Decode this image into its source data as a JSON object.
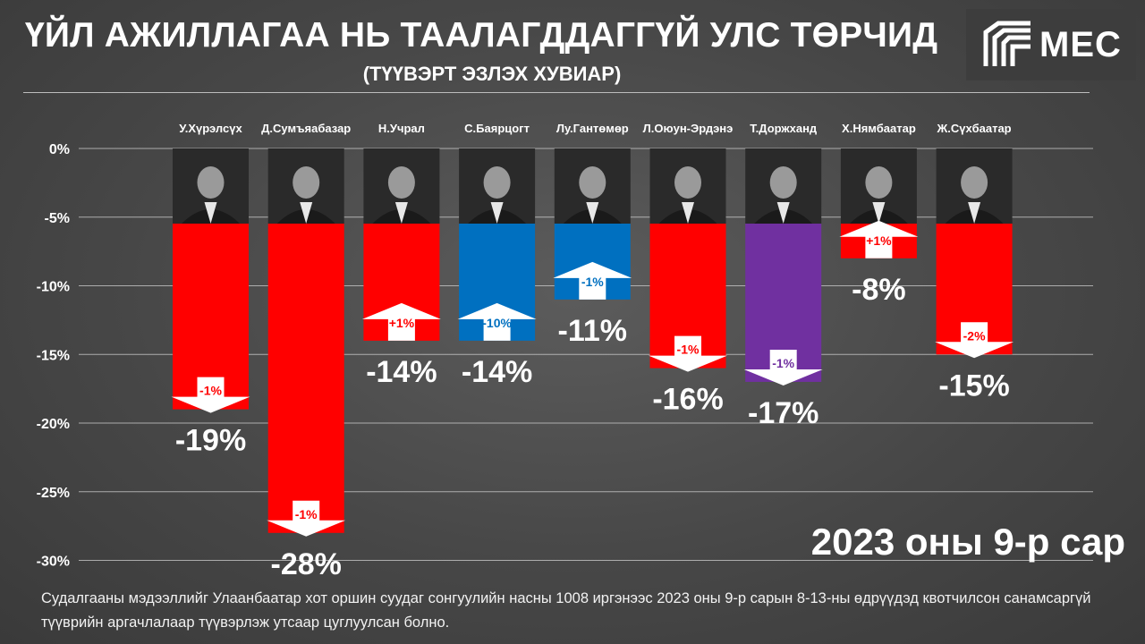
{
  "title": "ҮЙЛ АЖИЛЛАГАА НЬ ТААЛАГДДАГГҮЙ УЛС ТӨРЧИД",
  "subtitle": "(ТҮҮВЭРТ ЭЗЛЭХ ХУВИАР)",
  "logo": {
    "text": "MEC",
    "icon": "mec-logo-icon"
  },
  "period": "2023 оны 9-р сар",
  "footnote": "Судалгааны мэдээллийг Улаанбаатар хот оршин суудаг сонгуулийн насны 1008 иргэнээс 2023 оны 9-р сарын 8-13-ны өдрүүдэд квотчилсон санамсаргүй түүврийн аргачлалаар түүвэрлэж утсаар цуглуулсан болно.",
  "colors": {
    "red": "#ff0000",
    "blue": "#0070c0",
    "purple": "#7030a0",
    "photo_bg": "#2a2a2a"
  },
  "chart_data": {
    "type": "bar",
    "ylim": [
      -30,
      0
    ],
    "yticks": [
      "0%",
      "-5%",
      "-10%",
      "-15%",
      "-20%",
      "-25%",
      "-30%"
    ],
    "ytick_values": [
      0,
      -5,
      -10,
      -15,
      -20,
      -25,
      -30
    ],
    "grid": true,
    "categories": [
      "У.Хүрэлсүх",
      "Д.Сумъяабазар",
      "Н.Учрал",
      "С.Баярцогт",
      "Лу.Гантөмөр",
      "Л.Оюун-Эрдэнэ",
      "Т.Доржханд",
      "Х.Нямбаатар",
      "Ж.Сүхбаатар"
    ],
    "values": [
      -19,
      -28,
      -14,
      -14,
      -11,
      -16,
      -17,
      -8,
      -15
    ],
    "value_labels": [
      "-19%",
      "-28%",
      "-14%",
      "-14%",
      "-11%",
      "-16%",
      "-17%",
      "-8%",
      "-15%"
    ],
    "bar_colors": [
      "#ff0000",
      "#ff0000",
      "#ff0000",
      "#0070c0",
      "#0070c0",
      "#ff0000",
      "#7030a0",
      "#ff0000",
      "#ff0000"
    ],
    "changes": [
      {
        "label": "-1%",
        "direction": "down"
      },
      {
        "label": "-1%",
        "direction": "down"
      },
      {
        "label": "+1%",
        "direction": "up"
      },
      {
        "label": "-10%",
        "direction": "up"
      },
      {
        "label": "-1%",
        "direction": "up"
      },
      {
        "label": "-1%",
        "direction": "down"
      },
      {
        "label": "-1%",
        "direction": "down"
      },
      {
        "label": "+1%",
        "direction": "up"
      },
      {
        "label": "-2%",
        "direction": "down"
      }
    ]
  }
}
